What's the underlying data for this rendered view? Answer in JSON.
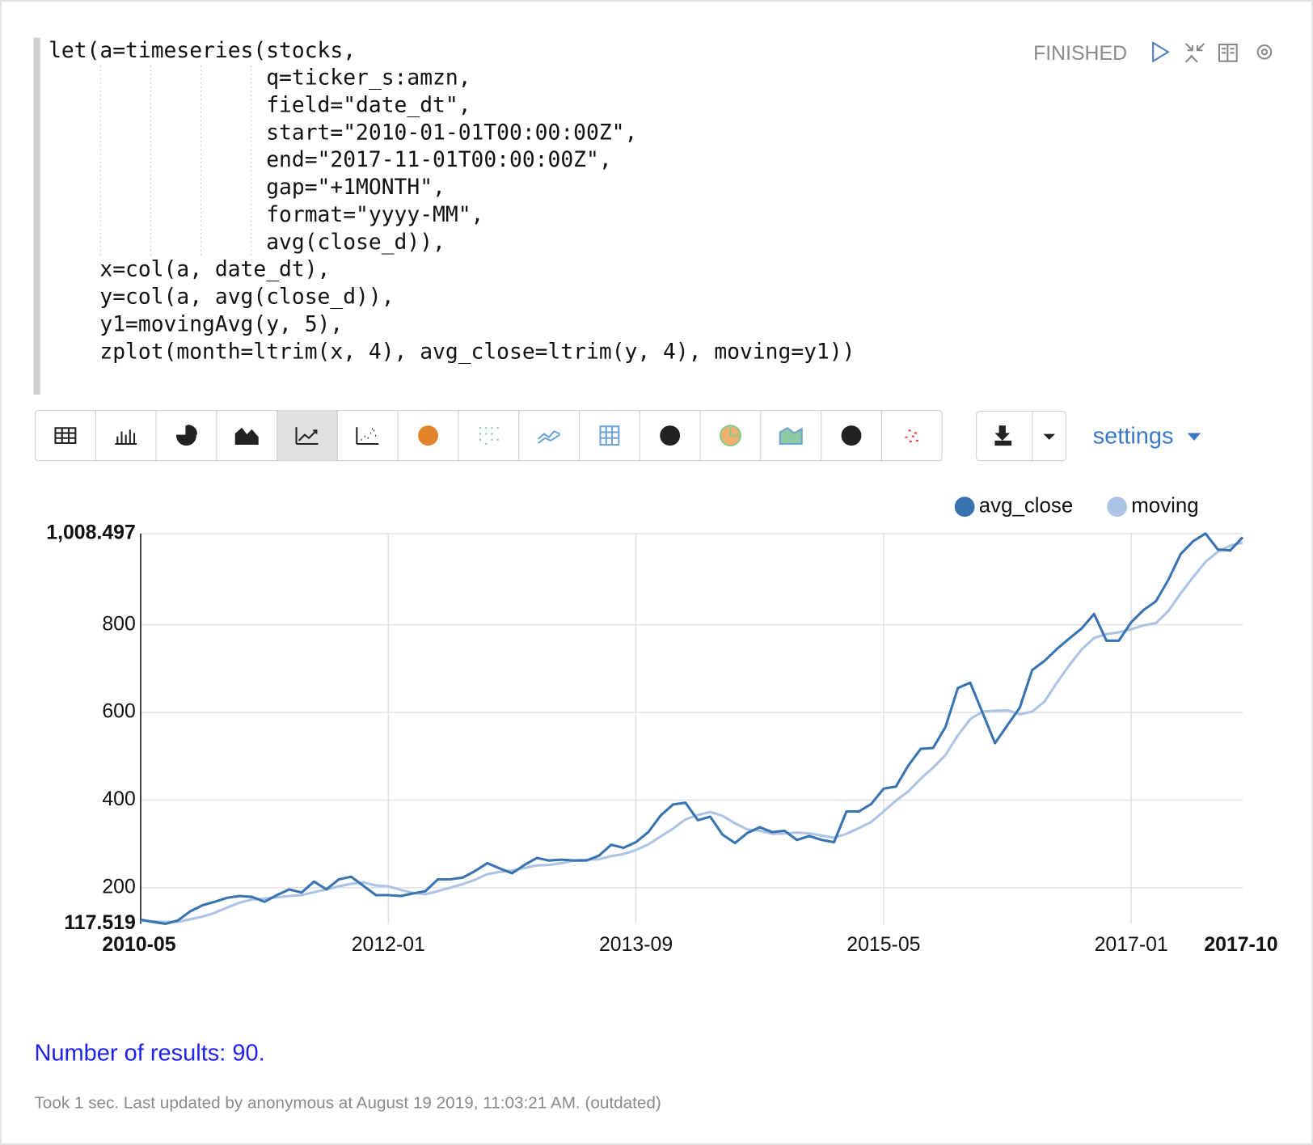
{
  "paragraph": {
    "code": [
      "let(a=timeseries(stocks,",
      "                 q=ticker_s:amzn,",
      "                 field=\"date_dt\",",
      "                 start=\"2010-01-01T00:00:00Z\",",
      "                 end=\"2017-11-01T00:00:00Z\",",
      "                 gap=\"+1MONTH\",",
      "                 format=\"yyyy-MM\",",
      "                 avg(close_d)),",
      "    x=col(a, date_dt),",
      "    y=col(a, avg(close_d)),",
      "    y1=movingAvg(y, 5),",
      "    zplot(month=ltrim(x, 4), avg_close=ltrim(y, 4), moving=y1))"
    ],
    "status": "FINISHED",
    "settings_label": "settings",
    "results": "Number of results: 90.",
    "footer": "Took 1 sec. Last updated by anonymous at August 19 2019, 11:03:21 AM. (outdated)"
  },
  "chart_data": {
    "type": "line",
    "categories": [
      "2010-05",
      null,
      null,
      null,
      null,
      null,
      null,
      null,
      null,
      null,
      null,
      null,
      null,
      null,
      null,
      null,
      null,
      null,
      null,
      null,
      "2012-01",
      null,
      null,
      null,
      null,
      null,
      null,
      null,
      null,
      null,
      null,
      null,
      null,
      null,
      null,
      null,
      null,
      null,
      null,
      null,
      "2013-09",
      null,
      null,
      null,
      null,
      null,
      null,
      null,
      null,
      null,
      null,
      null,
      null,
      null,
      null,
      null,
      null,
      null,
      null,
      null,
      "2015-05",
      null,
      null,
      null,
      null,
      null,
      null,
      null,
      null,
      null,
      null,
      null,
      null,
      null,
      null,
      null,
      null,
      null,
      null,
      null,
      "2017-01",
      null,
      null,
      null,
      null,
      null,
      null,
      null,
      null,
      "2017-10"
    ],
    "series": [
      {
        "name": "avg_close",
        "color": "#3a74b0",
        "values": [
          127,
          122,
          117.519,
          125,
          146,
          160,
          168,
          177,
          181,
          179,
          168,
          183,
          196,
          189,
          214,
          196,
          219,
          225,
          204,
          183,
          183,
          181,
          187,
          192,
          219,
          219,
          223,
          238,
          256,
          244,
          233,
          252,
          268,
          262,
          264,
          262,
          262,
          273,
          298,
          291,
          304,
          327,
          365,
          390,
          394,
          354,
          362,
          321,
          302,
          325,
          338,
          327,
          330,
          309,
          318,
          309,
          304,
          374,
          374,
          391,
          426,
          431,
          479,
          517,
          519,
          567,
          656,
          668,
          599,
          530,
          571,
          611,
          697,
          718,
          745,
          769,
          792,
          825,
          764,
          764,
          806,
          834,
          854,
          903,
          962,
          991,
          1008.497,
          972,
          970,
          1000
        ]
      },
      {
        "name": "moving",
        "color": "#aec4e6",
        "values": [
          125,
          123,
          122,
          122,
          128,
          134,
          143,
          155,
          166,
          173,
          175,
          178,
          181,
          183,
          190,
          196,
          203,
          209,
          212,
          205,
          203,
          195,
          188,
          185,
          192,
          200,
          208,
          218,
          231,
          236,
          239,
          245,
          251,
          252,
          256,
          262,
          264,
          265,
          272,
          277,
          286,
          299,
          317,
          335,
          356,
          366,
          373,
          364,
          347,
          333,
          330,
          323,
          324,
          326,
          324,
          319,
          314,
          323,
          336,
          350,
          374,
          399,
          420,
          449,
          474,
          503,
          548,
          585,
          602,
          604,
          605,
          596,
          602,
          625,
          668,
          708,
          744,
          770,
          779,
          783,
          790,
          799,
          804,
          832,
          872,
          909,
          944,
          967,
          981,
          988
        ]
      }
    ],
    "ylim": [
      117.519,
      1008.497
    ],
    "yticks": [
      117.519,
      200,
      400,
      600,
      800,
      {
        "value": 1008.497,
        "label": "1,008.497"
      }
    ],
    "grid": true
  }
}
